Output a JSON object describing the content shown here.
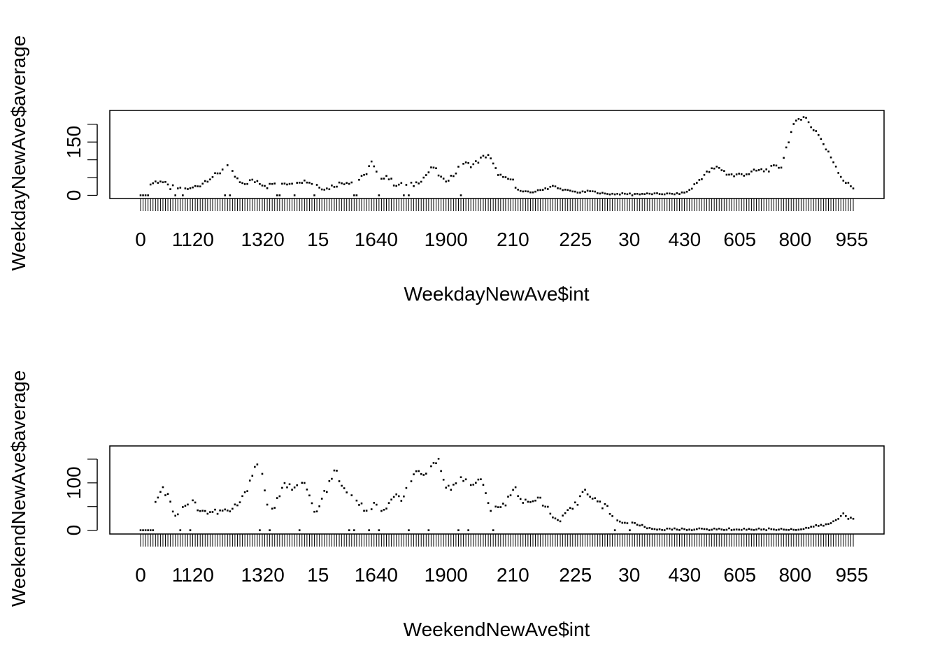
{
  "chart_data": [
    {
      "type": "scatter",
      "title": "",
      "xlabel": "WeekdayNewAve$int",
      "ylabel": "WeekdayNewAve$average",
      "x_tick_labels": [
        "0",
        "1120",
        "1320",
        "15",
        "1640",
        "1900",
        "210",
        "225",
        "30",
        "430",
        "605",
        "800",
        "955"
      ],
      "y_ticks": [
        0,
        150
      ],
      "y_minor_ticks": [
        0,
        50,
        100,
        150,
        200
      ],
      "ylim": [
        -5,
        235
      ],
      "n_categories": 288,
      "grid": false,
      "legend": "none",
      "anchors": [
        [
          0,
          2
        ],
        [
          5,
          32
        ],
        [
          10,
          42
        ],
        [
          15,
          22
        ],
        [
          20,
          20
        ],
        [
          25,
          18
        ],
        [
          30,
          28
        ],
        [
          35,
          48
        ],
        [
          40,
          60
        ],
        [
          44,
          88
        ],
        [
          48,
          55
        ],
        [
          52,
          28
        ],
        [
          56,
          40
        ],
        [
          60,
          40
        ],
        [
          65,
          25
        ],
        [
          70,
          38
        ],
        [
          75,
          35
        ],
        [
          80,
          42
        ],
        [
          85,
          40
        ],
        [
          90,
          30
        ],
        [
          95,
          18
        ],
        [
          100,
          30
        ],
        [
          105,
          38
        ],
        [
          110,
          38
        ],
        [
          115,
          55
        ],
        [
          118,
          95
        ],
        [
          122,
          50
        ],
        [
          126,
          55
        ],
        [
          130,
          32
        ],
        [
          135,
          28
        ],
        [
          140,
          30
        ],
        [
          145,
          50
        ],
        [
          150,
          80
        ],
        [
          155,
          40
        ],
        [
          160,
          55
        ],
        [
          165,
          90
        ],
        [
          170,
          85
        ],
        [
          175,
          105
        ],
        [
          178,
          115
        ],
        [
          182,
          70
        ],
        [
          186,
          45
        ],
        [
          190,
          45
        ],
        [
          194,
          12
        ],
        [
          200,
          8
        ],
        [
          205,
          15
        ],
        [
          210,
          25
        ],
        [
          215,
          18
        ],
        [
          220,
          12
        ],
        [
          225,
          8
        ],
        [
          230,
          12
        ],
        [
          234,
          8
        ],
        [
          238,
          4
        ],
        [
          245,
          4
        ],
        [
          255,
          4
        ],
        [
          265,
          4
        ],
        [
          275,
          4
        ],
        [
          280,
          10
        ],
        [
          284,
          30
        ],
        [
          288,
          55
        ],
        [
          292,
          70
        ],
        [
          296,
          80
        ],
        [
          300,
          62
        ],
        [
          304,
          55
        ],
        [
          308,
          60
        ],
        [
          312,
          62
        ],
        [
          316,
          70
        ],
        [
          320,
          70
        ],
        [
          324,
          78
        ],
        [
          328,
          80
        ],
        [
          331,
          140
        ],
        [
          334,
          190
        ],
        [
          337,
          215
        ],
        [
          340,
          225
        ],
        [
          343,
          195
        ],
        [
          347,
          175
        ],
        [
          351,
          130
        ],
        [
          355,
          95
        ],
        [
          359,
          50
        ],
        [
          362,
          32
        ],
        [
          365,
          20
        ]
      ],
      "zero_x": [
        0,
        1,
        2,
        3,
        14,
        17,
        34,
        36,
        55,
        56,
        62,
        70,
        86,
        87,
        96,
        106,
        108,
        129,
        198
      ]
    },
    {
      "type": "scatter",
      "title": "",
      "xlabel": "WeekendNewAve$int",
      "ylabel": "WeekendNewAve$average",
      "x_tick_labels": [
        "0",
        "1120",
        "1320",
        "15",
        "1640",
        "1900",
        "210",
        "225",
        "30",
        "430",
        "605",
        "800",
        "955"
      ],
      "y_ticks": [
        0,
        100
      ],
      "y_minor_ticks": [
        0,
        50,
        100,
        150
      ],
      "ylim": [
        -5,
        175
      ],
      "n_categories": 288,
      "grid": false,
      "legend": "none",
      "anchors": [
        [
          0,
          0
        ],
        [
          3,
          50
        ],
        [
          6,
          55
        ],
        [
          9,
          70
        ],
        [
          11,
          95
        ],
        [
          13,
          75
        ],
        [
          15,
          70
        ],
        [
          17,
          35
        ],
        [
          20,
          35
        ],
        [
          23,
          55
        ],
        [
          27,
          60
        ],
        [
          30,
          45
        ],
        [
          34,
          38
        ],
        [
          38,
          38
        ],
        [
          42,
          40
        ],
        [
          46,
          40
        ],
        [
          50,
          55
        ],
        [
          53,
          70
        ],
        [
          55,
          90
        ],
        [
          58,
          130
        ],
        [
          61,
          145
        ],
        [
          63,
          105
        ],
        [
          66,
          35
        ],
        [
          70,
          60
        ],
        [
          74,
          95
        ],
        [
          78,
          90
        ],
        [
          82,
          110
        ],
        [
          86,
          80
        ],
        [
          90,
          30
        ],
        [
          94,
          75
        ],
        [
          98,
          105
        ],
        [
          100,
          130
        ],
        [
          104,
          85
        ],
        [
          108,
          70
        ],
        [
          112,
          60
        ],
        [
          116,
          35
        ],
        [
          120,
          55
        ],
        [
          124,
          35
        ],
        [
          127,
          55
        ],
        [
          131,
          70
        ],
        [
          135,
          65
        ],
        [
          138,
          105
        ],
        [
          142,
          120
        ],
        [
          146,
          110
        ],
        [
          149,
          140
        ],
        [
          153,
          145
        ],
        [
          157,
          95
        ],
        [
          161,
          90
        ],
        [
          165,
          110
        ],
        [
          170,
          100
        ],
        [
          175,
          105
        ],
        [
          180,
          40
        ],
        [
          184,
          45
        ],
        [
          188,
          60
        ],
        [
          192,
          95
        ],
        [
          196,
          60
        ],
        [
          200,
          55
        ],
        [
          204,
          75
        ],
        [
          208,
          50
        ],
        [
          212,
          25
        ],
        [
          216,
          20
        ],
        [
          220,
          40
        ],
        [
          224,
          55
        ],
        [
          228,
          90
        ],
        [
          232,
          70
        ],
        [
          236,
          55
        ],
        [
          240,
          45
        ],
        [
          244,
          25
        ],
        [
          248,
          15
        ],
        [
          252,
          15
        ],
        [
          256,
          12
        ],
        [
          260,
          5
        ],
        [
          265,
          2
        ],
        [
          280,
          2
        ],
        [
          300,
          2
        ],
        [
          320,
          2
        ],
        [
          340,
          2
        ],
        [
          345,
          8
        ],
        [
          350,
          10
        ],
        [
          355,
          15
        ],
        [
          358,
          25
        ],
        [
          361,
          35
        ],
        [
          364,
          30
        ],
        [
          366,
          30
        ]
      ],
      "zero_x": [
        0,
        1,
        2,
        3,
        4,
        5,
        16,
        20,
        48,
        52,
        64,
        84,
        86,
        92,
        96,
        108,
        116,
        128,
        132,
        142,
        191,
        197
      ]
    }
  ]
}
